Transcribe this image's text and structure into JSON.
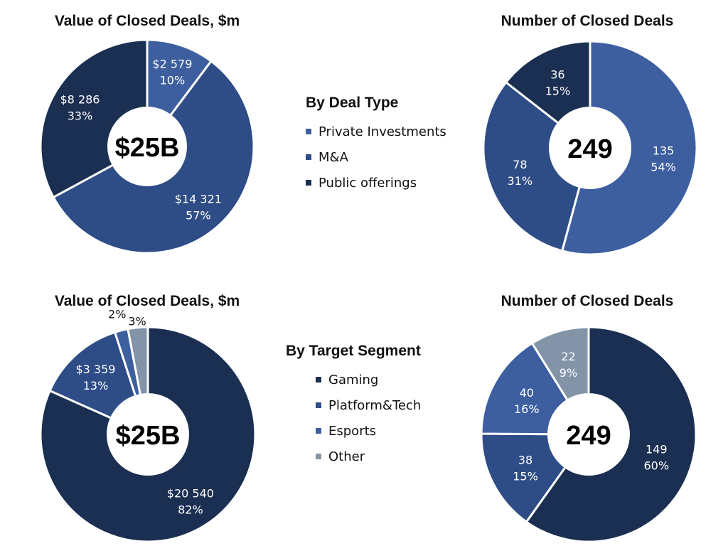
{
  "chart_data": [
    {
      "type": "pie",
      "title": "Value of Closed Deals, $m",
      "center_label": "$25B",
      "slices": [
        {
          "name": "Private Investments",
          "value": 2579,
          "value_label": "$2 579",
          "pct_label": "10%",
          "color": "#3d5fa0"
        },
        {
          "name": "M&A",
          "value": 14321,
          "value_label": "$14 321",
          "pct_label": "57%",
          "color": "#2e4c86"
        },
        {
          "name": "Public offerings",
          "value": 8286,
          "value_label": "$8 286",
          "pct_label": "33%",
          "color": "#1b2f52"
        }
      ]
    },
    {
      "type": "pie",
      "title": "Number of Closed Deals",
      "center_label": "249",
      "slices": [
        {
          "name": "Private Investments",
          "value": 135,
          "value_label": "135",
          "pct_label": "54%",
          "color": "#3d5fa0"
        },
        {
          "name": "M&A",
          "value": 78,
          "value_label": "78",
          "pct_label": "31%",
          "color": "#2e4c86"
        },
        {
          "name": "Public offerings",
          "value": 36,
          "value_label": "36",
          "pct_label": "15%",
          "color": "#1b2f52"
        }
      ]
    },
    {
      "type": "pie",
      "title": "Value of Closed Deals, $m",
      "center_label": "$25B",
      "slices": [
        {
          "name": "Gaming",
          "value": 20540,
          "value_label": "$20 540",
          "pct_label": "82%",
          "color": "#1b2f52"
        },
        {
          "name": "Platform&Tech",
          "value": 3359,
          "value_label": "$3 359",
          "pct_label": "13%",
          "color": "#2e4c86"
        },
        {
          "name": "Esports",
          "value": 500,
          "value_label": "",
          "pct_label": "2%",
          "color": "#3d5fa0"
        },
        {
          "name": "Other",
          "value": 750,
          "value_label": "",
          "pct_label": "3%",
          "color": "#8394a9"
        }
      ]
    },
    {
      "type": "pie",
      "title": "Number of Closed Deals",
      "center_label": "249",
      "slices": [
        {
          "name": "Gaming",
          "value": 149,
          "value_label": "149",
          "pct_label": "60%",
          "color": "#1b2f52"
        },
        {
          "name": "Platform&Tech",
          "value": 38,
          "value_label": "38",
          "pct_label": "15%",
          "color": "#2e4c86"
        },
        {
          "name": "Esports",
          "value": 40,
          "value_label": "40",
          "pct_label": "16%",
          "color": "#3d5fa0"
        },
        {
          "name": "Other",
          "value": 22,
          "value_label": "22",
          "pct_label": "9%",
          "color": "#8394a9"
        }
      ]
    }
  ],
  "legends": [
    {
      "title": "By Deal Type",
      "items": [
        {
          "label": "Private Investments",
          "color": "#3d5fa0"
        },
        {
          "label": "M&A",
          "color": "#2e4c86"
        },
        {
          "label": "Public offerings",
          "color": "#1b2f52"
        }
      ]
    },
    {
      "title": "By Target Segment",
      "items": [
        {
          "label": "Gaming",
          "color": "#1b2f52"
        },
        {
          "label": "Platform&Tech",
          "color": "#2e4c86"
        },
        {
          "label": "Esports",
          "color": "#3d5fa0"
        },
        {
          "label": "Other",
          "color": "#8394a9"
        }
      ]
    }
  ]
}
